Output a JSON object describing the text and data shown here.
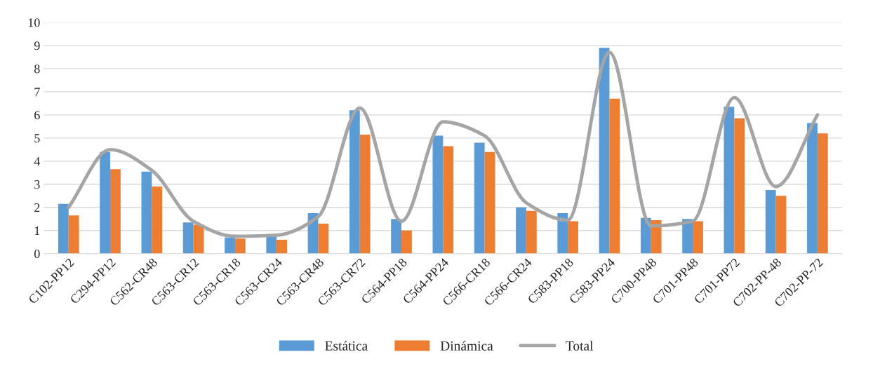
{
  "chart_data": {
    "type": "bar",
    "categories": [
      "C102-PP12",
      "C294-PP12",
      "C562-CR48",
      "C563-CR12",
      "C563-CR18",
      "C563-CR24",
      "C563-CR48",
      "C563-CR72",
      "C564-PP18",
      "C564-PP24",
      "C566-CR18",
      "C566-CR24",
      "C583-PP18",
      "C583-PP24",
      "C700-PP48",
      "C701-PP48",
      "C701-PP72",
      "C702-PP-48",
      "C702-PP-72"
    ],
    "series": [
      {
        "name": "Estática",
        "color": "#5b9bd5",
        "values": [
          2.15,
          4.4,
          3.55,
          1.35,
          0.7,
          0.8,
          1.75,
          6.2,
          1.5,
          5.1,
          4.8,
          2.0,
          1.75,
          8.9,
          1.55,
          1.5,
          6.35,
          2.75,
          5.65
        ]
      },
      {
        "name": "Dinámica",
        "color": "#ed7d31",
        "values": [
          1.65,
          3.65,
          2.9,
          1.25,
          0.65,
          0.6,
          1.3,
          5.15,
          1.0,
          4.65,
          4.4,
          1.85,
          1.4,
          6.7,
          1.45,
          1.4,
          5.85,
          2.5,
          5.2
        ]
      },
      {
        "name": "Total",
        "type": "line",
        "color": "#a5a5a5",
        "line_style": "solid",
        "values": [
          2.0,
          4.5,
          3.6,
          1.4,
          0.75,
          0.8,
          1.6,
          6.3,
          1.4,
          5.7,
          5.1,
          2.2,
          1.45,
          8.7,
          1.2,
          1.4,
          6.75,
          2.9,
          6.0
        ]
      }
    ],
    "ylim": [
      0,
      10
    ],
    "yticks": [
      0,
      1,
      2,
      3,
      4,
      5,
      6,
      7,
      8,
      9,
      10
    ],
    "grid": "y",
    "legend": "bottom"
  }
}
